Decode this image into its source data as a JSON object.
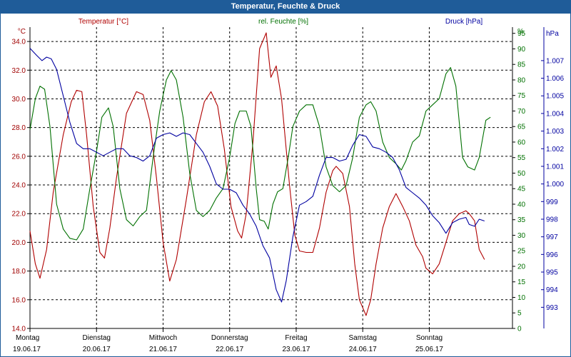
{
  "chart_data": {
    "type": "line",
    "title": "Temperatur, Feuchte & Druck",
    "x_categories": [
      {
        "day": "Montag",
        "date": "19.06.17"
      },
      {
        "day": "Dienstag",
        "date": "20.06.17"
      },
      {
        "day": "Mittwoch",
        "date": "21.06.17"
      },
      {
        "day": "Donnerstag",
        "date": "22.06.17"
      },
      {
        "day": "Freitag",
        "date": "23.06.17"
      },
      {
        "day": "Samstag",
        "date": "24.06.17"
      },
      {
        "day": "Sonntag",
        "date": "25.06.17"
      }
    ],
    "x_range_days": [
      0,
      7.25
    ],
    "axes": {
      "temperature": {
        "unit": "°C",
        "range": [
          14,
          35
        ],
        "ticks": [
          "14.0",
          "16.0",
          "18.0",
          "20.0",
          "22.0",
          "24.0",
          "26.0",
          "28.0",
          "30.0",
          "32.0",
          "34.0"
        ],
        "color": "#a00000"
      },
      "humidity": {
        "unit": "%",
        "range": [
          0,
          97
        ],
        "ticks": [
          "0",
          "5",
          "10",
          "15",
          "20",
          "25",
          "30",
          "35",
          "40",
          "45",
          "50",
          "55",
          "60",
          "65",
          "70",
          "75",
          "80",
          "85",
          "90",
          "95"
        ],
        "color": "#007000"
      },
      "pressure": {
        "unit": "hPa",
        "range": [
          991.8,
          1008.9
        ],
        "ticks": [
          "993",
          "994",
          "995",
          "996",
          "997",
          "998",
          "999",
          "1.000",
          "1.001",
          "1.002",
          "1.003",
          "1.004",
          "1.005",
          "1.006",
          "1.007"
        ],
        "color": "#0000a0"
      }
    },
    "series": [
      {
        "name": "Temperatur [°C]",
        "axis": "temperature",
        "color": "#b00000",
        "points": [
          [
            0,
            20.8
          ],
          [
            0.08,
            18.5
          ],
          [
            0.15,
            17.5
          ],
          [
            0.25,
            19.5
          ],
          [
            0.35,
            23.5
          ],
          [
            0.5,
            27.5
          ],
          [
            0.62,
            29.8
          ],
          [
            0.7,
            30.6
          ],
          [
            0.78,
            30.5
          ],
          [
            0.85,
            27.5
          ],
          [
            0.95,
            22.5
          ],
          [
            1.05,
            19.3
          ],
          [
            1.12,
            18.9
          ],
          [
            1.2,
            21
          ],
          [
            1.3,
            24.5
          ],
          [
            1.45,
            29
          ],
          [
            1.6,
            30.5
          ],
          [
            1.7,
            30.3
          ],
          [
            1.8,
            28.5
          ],
          [
            1.9,
            24.5
          ],
          [
            2.0,
            20
          ],
          [
            2.1,
            17.3
          ],
          [
            2.2,
            18.8
          ],
          [
            2.35,
            23
          ],
          [
            2.5,
            27.5
          ],
          [
            2.62,
            29.8
          ],
          [
            2.72,
            30.5
          ],
          [
            2.82,
            29.5
          ],
          [
            2.92,
            26.5
          ],
          [
            3.02,
            22.5
          ],
          [
            3.12,
            20.8
          ],
          [
            3.18,
            20.3
          ],
          [
            3.25,
            22
          ],
          [
            3.35,
            27
          ],
          [
            3.45,
            33.5
          ],
          [
            3.55,
            34.6
          ],
          [
            3.62,
            31.5
          ],
          [
            3.7,
            32.3
          ],
          [
            3.78,
            30
          ],
          [
            3.9,
            24
          ],
          [
            3.98,
            20.5
          ],
          [
            4.05,
            19.4
          ],
          [
            4.15,
            19.3
          ],
          [
            4.25,
            19.3
          ],
          [
            4.35,
            21
          ],
          [
            4.45,
            23.5
          ],
          [
            4.55,
            25
          ],
          [
            4.6,
            25.3
          ],
          [
            4.7,
            24.8
          ],
          [
            4.8,
            22.5
          ],
          [
            4.88,
            18.5
          ],
          [
            4.95,
            16
          ],
          [
            5.05,
            14.9
          ],
          [
            5.12,
            16
          ],
          [
            5.2,
            18.5
          ],
          [
            5.3,
            21
          ],
          [
            5.4,
            22.5
          ],
          [
            5.5,
            23.4
          ],
          [
            5.6,
            22.5
          ],
          [
            5.7,
            21.5
          ],
          [
            5.8,
            19.8
          ],
          [
            5.9,
            19
          ],
          [
            5.95,
            18.2
          ],
          [
            6.05,
            17.8
          ],
          [
            6.15,
            18.5
          ],
          [
            6.25,
            20
          ],
          [
            6.35,
            21.5
          ],
          [
            6.45,
            22
          ],
          [
            6.55,
            22.2
          ],
          [
            6.6,
            22
          ],
          [
            6.68,
            21.5
          ],
          [
            6.75,
            19.5
          ],
          [
            6.83,
            18.8
          ]
        ]
      },
      {
        "name": "rel. Feuchte [%]",
        "axis": "humidity",
        "color": "#007000",
        "points": [
          [
            0,
            64
          ],
          [
            0.08,
            74
          ],
          [
            0.15,
            78
          ],
          [
            0.22,
            77
          ],
          [
            0.3,
            65
          ],
          [
            0.4,
            40
          ],
          [
            0.5,
            32
          ],
          [
            0.6,
            29
          ],
          [
            0.7,
            28.5
          ],
          [
            0.8,
            32
          ],
          [
            0.9,
            45
          ],
          [
            1.0,
            57
          ],
          [
            1.08,
            68
          ],
          [
            1.18,
            71
          ],
          [
            1.25,
            65
          ],
          [
            1.35,
            45
          ],
          [
            1.45,
            35
          ],
          [
            1.55,
            33
          ],
          [
            1.65,
            36
          ],
          [
            1.75,
            38
          ],
          [
            1.85,
            55
          ],
          [
            1.95,
            70
          ],
          [
            2.05,
            80
          ],
          [
            2.12,
            83
          ],
          [
            2.2,
            80
          ],
          [
            2.3,
            68
          ],
          [
            2.4,
            50
          ],
          [
            2.5,
            38
          ],
          [
            2.6,
            36
          ],
          [
            2.7,
            38
          ],
          [
            2.8,
            42
          ],
          [
            2.9,
            45
          ],
          [
            3.0,
            55
          ],
          [
            3.08,
            66
          ],
          [
            3.15,
            70
          ],
          [
            3.25,
            70
          ],
          [
            3.32,
            65
          ],
          [
            3.4,
            45
          ],
          [
            3.45,
            35
          ],
          [
            3.52,
            34.5
          ],
          [
            3.58,
            32
          ],
          [
            3.65,
            40
          ],
          [
            3.72,
            44
          ],
          [
            3.8,
            45
          ],
          [
            3.88,
            55
          ],
          [
            3.95,
            65
          ],
          [
            4.05,
            70
          ],
          [
            4.15,
            72
          ],
          [
            4.25,
            72
          ],
          [
            4.35,
            65
          ],
          [
            4.45,
            52
          ],
          [
            4.55,
            46
          ],
          [
            4.65,
            44
          ],
          [
            4.75,
            46
          ],
          [
            4.85,
            55
          ],
          [
            4.95,
            68
          ],
          [
            5.05,
            72
          ],
          [
            5.12,
            73
          ],
          [
            5.2,
            70
          ],
          [
            5.3,
            60
          ],
          [
            5.4,
            55
          ],
          [
            5.5,
            53
          ],
          [
            5.58,
            51
          ],
          [
            5.65,
            54
          ],
          [
            5.75,
            60
          ],
          [
            5.85,
            62
          ],
          [
            5.95,
            70
          ],
          [
            6.05,
            72
          ],
          [
            6.15,
            74
          ],
          [
            6.25,
            82
          ],
          [
            6.32,
            84
          ],
          [
            6.4,
            78
          ],
          [
            6.5,
            55
          ],
          [
            6.58,
            52
          ],
          [
            6.68,
            51
          ],
          [
            6.75,
            55
          ],
          [
            6.85,
            67
          ],
          [
            6.92,
            68
          ]
        ]
      },
      {
        "name": "Druck [hPa]",
        "axis": "pressure",
        "color": "#0000a0",
        "points": [
          [
            0,
            1007.7
          ],
          [
            0.1,
            1007.3
          ],
          [
            0.18,
            1007.0
          ],
          [
            0.25,
            1007.2
          ],
          [
            0.32,
            1007.1
          ],
          [
            0.4,
            1006.5
          ],
          [
            0.5,
            1005.0
          ],
          [
            0.6,
            1003.5
          ],
          [
            0.7,
            1002.3
          ],
          [
            0.8,
            1002.0
          ],
          [
            0.9,
            1002.0
          ],
          [
            1.0,
            1001.8
          ],
          [
            1.1,
            1001.6
          ],
          [
            1.2,
            1001.8
          ],
          [
            1.3,
            1002.0
          ],
          [
            1.4,
            1002.0
          ],
          [
            1.5,
            1001.6
          ],
          [
            1.6,
            1001.5
          ],
          [
            1.7,
            1001.3
          ],
          [
            1.8,
            1001.6
          ],
          [
            1.9,
            1002.6
          ],
          [
            2.0,
            1002.8
          ],
          [
            2.1,
            1002.9
          ],
          [
            2.2,
            1002.7
          ],
          [
            2.3,
            1002.9
          ],
          [
            2.4,
            1002.8
          ],
          [
            2.5,
            1002.3
          ],
          [
            2.6,
            1001.8
          ],
          [
            2.7,
            1001.0
          ],
          [
            2.8,
            1000.0
          ],
          [
            2.9,
            999.7
          ],
          [
            3.0,
            999.7
          ],
          [
            3.1,
            999.5
          ],
          [
            3.2,
            998.8
          ],
          [
            3.3,
            998.3
          ],
          [
            3.4,
            997.6
          ],
          [
            3.5,
            996.5
          ],
          [
            3.6,
            995.8
          ],
          [
            3.7,
            994.0
          ],
          [
            3.78,
            993.3
          ],
          [
            3.85,
            994.5
          ],
          [
            3.95,
            997.0
          ],
          [
            4.05,
            998.8
          ],
          [
            4.15,
            999.0
          ],
          [
            4.25,
            999.3
          ],
          [
            4.35,
            1000.5
          ],
          [
            4.45,
            1001.5
          ],
          [
            4.55,
            1001.5
          ],
          [
            4.65,
            1001.3
          ],
          [
            4.75,
            1001.4
          ],
          [
            4.85,
            1002.2
          ],
          [
            4.95,
            1002.8
          ],
          [
            5.05,
            1002.7
          ],
          [
            5.15,
            1002.1
          ],
          [
            5.25,
            1002.0
          ],
          [
            5.35,
            1001.8
          ],
          [
            5.45,
            1001.5
          ],
          [
            5.55,
            1000.8
          ],
          [
            5.65,
            999.8
          ],
          [
            5.75,
            999.5
          ],
          [
            5.85,
            999.2
          ],
          [
            5.95,
            998.8
          ],
          [
            6.05,
            998.2
          ],
          [
            6.15,
            997.8
          ],
          [
            6.25,
            997.2
          ],
          [
            6.35,
            997.8
          ],
          [
            6.45,
            998.0
          ],
          [
            6.55,
            998.1
          ],
          [
            6.6,
            997.7
          ],
          [
            6.68,
            997.6
          ],
          [
            6.75,
            998.0
          ],
          [
            6.83,
            997.9
          ]
        ]
      }
    ]
  }
}
